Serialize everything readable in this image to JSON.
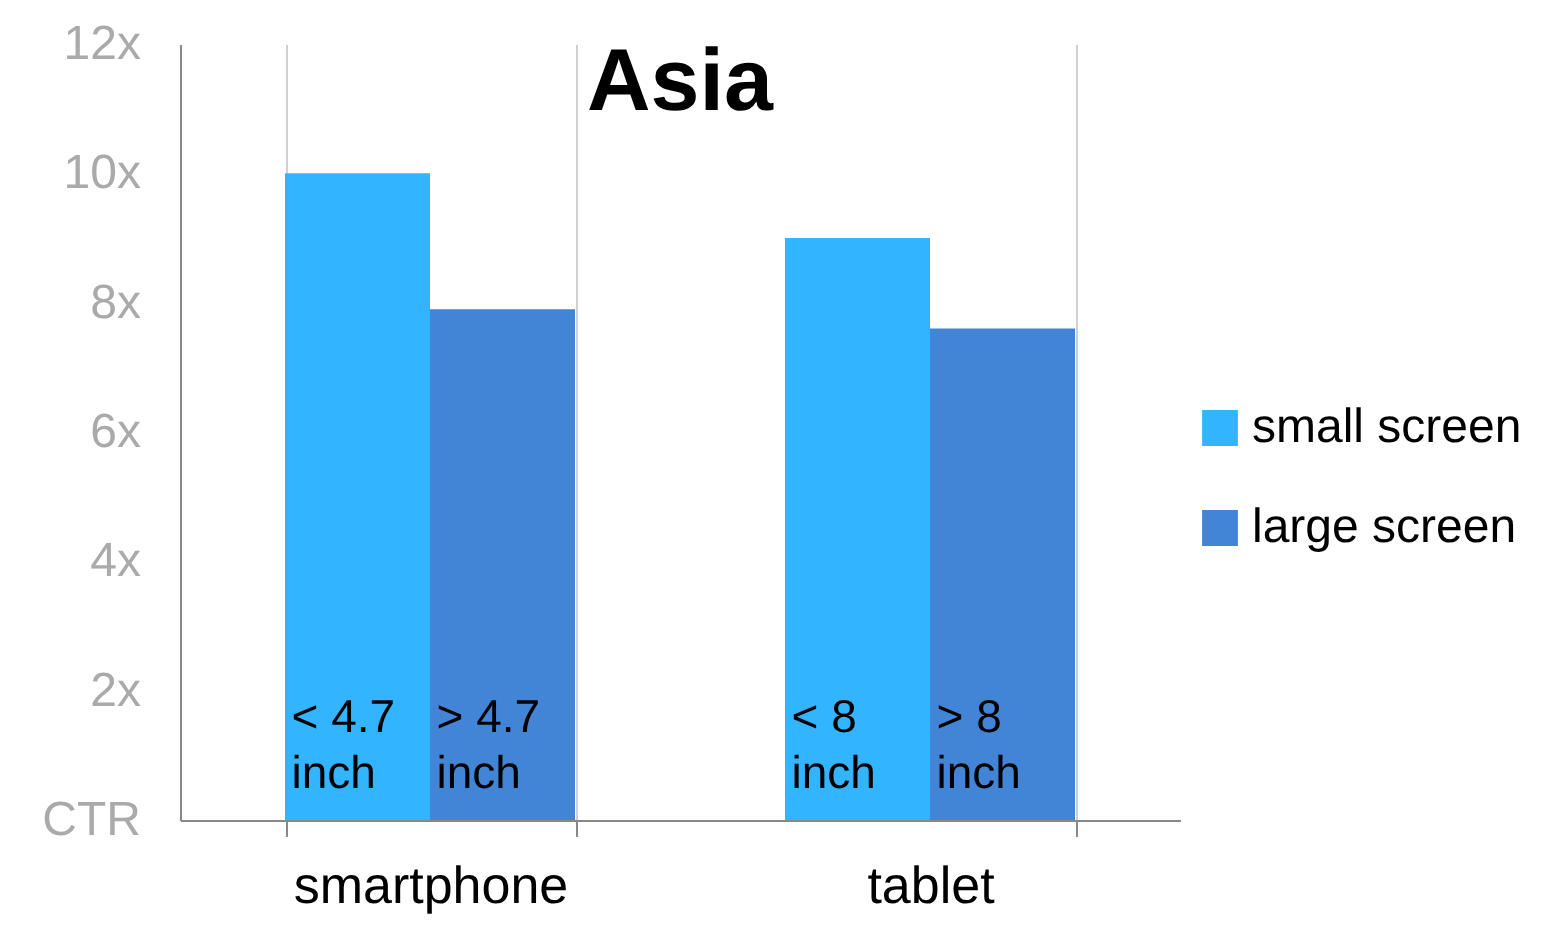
{
  "chart_data": {
    "type": "bar",
    "title": "Asia",
    "categories": [
      "smartphone",
      "tablet"
    ],
    "series": [
      {
        "name": "small screen",
        "color": "#33b4fe",
        "values": [
          10,
          9
        ]
      },
      {
        "name": "large screen",
        "color": "#4285d6",
        "values": [
          7.9,
          7.6
        ]
      }
    ],
    "annotations": [
      "< 4.7\ninch",
      "> 4.7\ninch",
      "< 8\ninch",
      "> 8\ninch"
    ],
    "ylim": [
      0,
      12
    ],
    "yticks": [
      {
        "value": 0,
        "label": "CTR"
      },
      {
        "value": 2,
        "label": "2x"
      },
      {
        "value": 4,
        "label": "4x"
      },
      {
        "value": 6,
        "label": "6x"
      },
      {
        "value": 8,
        "label": "8x"
      },
      {
        "value": 10,
        "label": "10x"
      },
      {
        "value": 12,
        "label": "12x"
      }
    ],
    "grid": "x",
    "legend": "right"
  }
}
